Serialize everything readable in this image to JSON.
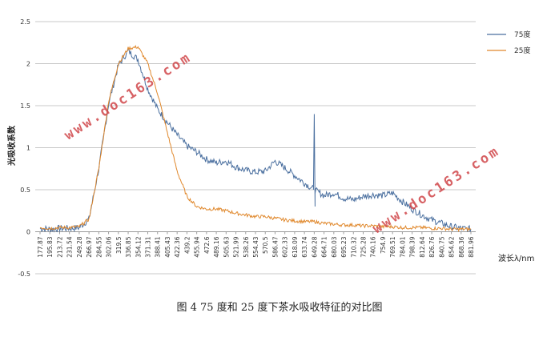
{
  "chart_data": {
    "type": "line",
    "xlabel": "波长λ/nm",
    "ylabel": "光吸收系数",
    "ylim": [
      -0.5,
      2.5
    ],
    "yticks": [
      "2.5",
      "2",
      "1.5",
      "1",
      "0.5",
      "0",
      "-0.5"
    ],
    "yticks_values": [
      2.5,
      2,
      1.5,
      1,
      0.5,
      0,
      -0.5
    ],
    "grid": true,
    "legend_position": "top-right",
    "categories": [
      "177.87",
      "195.83",
      "213.72",
      "231.54",
      "249.28",
      "266.97",
      "284.55",
      "302.06",
      "319.5",
      "336.85",
      "354.12",
      "371.31",
      "388.41",
      "405.43",
      "422.36",
      "439.2",
      "455.94",
      "472.6",
      "489.16",
      "505.63",
      "521.99",
      "538.26",
      "554.43",
      "570.5",
      "586.47",
      "602.33",
      "618.09",
      "633.74",
      "649.28",
      "664.71",
      "680.03",
      "695.23",
      "710.32",
      "725.28",
      "740.16",
      "754.9",
      "769.51",
      "784.01",
      "798.39",
      "812.64",
      "826.76",
      "840.75",
      "854.62",
      "868.36",
      "881.96"
    ],
    "series": [
      {
        "name": "75度",
        "color": "#4a6f9f",
        "values": [
          0.04,
          0.03,
          0.04,
          0.04,
          0.05,
          0.15,
          0.75,
          1.52,
          1.98,
          2.15,
          2.05,
          1.7,
          1.46,
          1.3,
          1.15,
          1.02,
          0.95,
          0.86,
          0.82,
          0.84,
          0.77,
          0.73,
          0.71,
          0.72,
          0.84,
          0.76,
          0.67,
          0.58,
          0.5,
          0.43,
          0.46,
          0.4,
          0.38,
          0.42,
          0.44,
          0.43,
          0.46,
          0.36,
          0.27,
          0.2,
          0.14,
          0.1,
          0.06,
          0.04,
          0.03
        ],
        "spikes": [
          {
            "category": "649.28",
            "value": 1.4
          }
        ]
      },
      {
        "name": "25度",
        "color": "#e0882c",
        "values": [
          0.05,
          0.04,
          0.05,
          0.05,
          0.06,
          0.15,
          0.75,
          1.55,
          2.0,
          2.18,
          2.2,
          2.0,
          1.65,
          1.18,
          0.72,
          0.42,
          0.3,
          0.27,
          0.27,
          0.25,
          0.22,
          0.2,
          0.18,
          0.18,
          0.16,
          0.14,
          0.13,
          0.12,
          0.12,
          0.1,
          0.09,
          0.08,
          0.08,
          0.07,
          0.07,
          0.06,
          0.06,
          0.05,
          0.05,
          0.05,
          0.04,
          0.04,
          0.03,
          0.03,
          0.03
        ]
      }
    ]
  },
  "caption": "图 4 75 度和 25 度下茶水吸收特征的对比图",
  "watermarks": [
    "www.doc163.com",
    "www.doc163.com"
  ]
}
